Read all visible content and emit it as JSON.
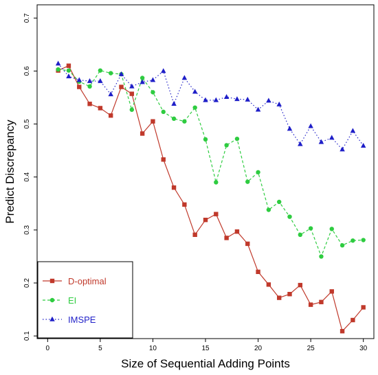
{
  "chart_data": {
    "type": "line",
    "title": "",
    "xlabel": "Size of Sequential Adding Points",
    "ylabel": "Predict Discrepancy",
    "xlim": [
      -1,
      31
    ],
    "ylim": [
      0.095,
      0.725
    ],
    "x_ticks": [
      0,
      5,
      10,
      15,
      20,
      25,
      30
    ],
    "y_ticks": [
      0.1,
      0.2,
      0.3,
      0.4,
      0.5,
      0.6,
      0.7
    ],
    "grid": false,
    "legend_position": "bottom-left",
    "x": [
      1,
      2,
      3,
      4,
      5,
      6,
      7,
      8,
      9,
      10,
      11,
      12,
      13,
      14,
      15,
      16,
      17,
      18,
      19,
      20,
      21,
      22,
      23,
      24,
      25,
      26,
      27,
      28,
      29,
      30
    ],
    "series": [
      {
        "name": "D-optimal",
        "color": "#c0392b",
        "line_style": "solid",
        "marker": "square",
        "values": [
          0.601,
          0.61,
          0.57,
          0.538,
          0.53,
          0.516,
          0.57,
          0.557,
          0.482,
          0.505,
          0.433,
          0.38,
          0.348,
          0.291,
          0.319,
          0.33,
          0.285,
          0.297,
          0.274,
          0.221,
          0.197,
          0.172,
          0.179,
          0.196,
          0.159,
          0.164,
          0.184,
          0.109,
          0.13,
          0.154
        ]
      },
      {
        "name": "EI",
        "color": "#2ecc40",
        "line_style": "dashed",
        "marker": "circle",
        "values": [
          0.603,
          0.601,
          0.58,
          0.571,
          0.601,
          0.596,
          0.594,
          0.527,
          0.587,
          0.56,
          0.523,
          0.51,
          0.505,
          0.531,
          0.471,
          0.39,
          0.46,
          0.472,
          0.391,
          0.409,
          0.338,
          0.353,
          0.325,
          0.291,
          0.303,
          0.25,
          0.302,
          0.271,
          0.28,
          0.281
        ]
      },
      {
        "name": "IMSPE",
        "color": "#1f1fc8",
        "line_style": "dotted",
        "marker": "triangle",
        "values": [
          0.614,
          0.59,
          0.583,
          0.581,
          0.581,
          0.556,
          0.594,
          0.571,
          0.579,
          0.583,
          0.6,
          0.538,
          0.587,
          0.561,
          0.545,
          0.545,
          0.551,
          0.547,
          0.546,
          0.527,
          0.544,
          0.537,
          0.491,
          0.462,
          0.496,
          0.466,
          0.474,
          0.452,
          0.487,
          0.459
        ]
      }
    ]
  }
}
